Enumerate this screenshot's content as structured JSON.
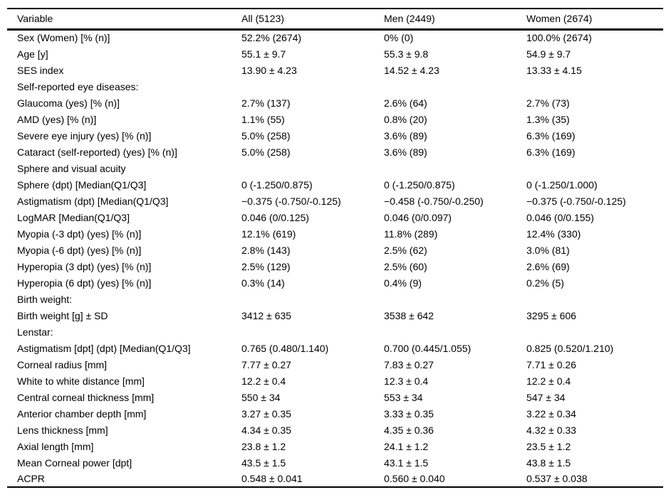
{
  "colors": {
    "background": "#ffffff",
    "text": "#000000",
    "rule": "#000000"
  },
  "table": {
    "columns": [
      "Variable",
      "All (5123)",
      "Men (2449)",
      "Women (2674)"
    ],
    "rows": [
      {
        "variable": "Sex (Women) [% (n)]",
        "all": "52.2% (2674)",
        "men": "0% (0)",
        "women": "100.0% (2674)",
        "section": false
      },
      {
        "variable": "Age [y]",
        "all": "55.1 ± 9.7",
        "men": "55.3 ± 9.8",
        "women": "54.9 ± 9.7",
        "section": false
      },
      {
        "variable": "SES index",
        "all": "13.90 ± 4.23",
        "men": "14.52 ± 4.23",
        "women": "13.33 ± 4.15",
        "section": false
      },
      {
        "variable": "Self-reported eye diseases:",
        "all": "",
        "men": "",
        "women": "",
        "section": true
      },
      {
        "variable": "Glaucoma (yes) [% (n)]",
        "all": "2.7% (137)",
        "men": "2.6% (64)",
        "women": "2.7% (73)",
        "section": false
      },
      {
        "variable": "AMD (yes) [% (n)]",
        "all": "1.1% (55)",
        "men": "0.8% (20)",
        "women": "1.3% (35)",
        "section": false
      },
      {
        "variable": "Severe eye injury (yes) [% (n)]",
        "all": "5.0% (258)",
        "men": "3.6% (89)",
        "women": "6.3% (169)",
        "section": false
      },
      {
        "variable": "Cataract (self-reported) (yes) [% (n)]",
        "all": "5.0% (258)",
        "men": "3.6% (89)",
        "women": "6.3% (169)",
        "section": false
      },
      {
        "variable": "Sphere and visual acuity",
        "all": "",
        "men": "",
        "women": "",
        "section": true
      },
      {
        "variable": "Sphere (dpt) [Median(Q1/Q3]",
        "all": "0 (-1.250/0.875)",
        "men": "0 (-1.250/0.875)",
        "women": "0 (-1.250/1.000)",
        "section": false
      },
      {
        "variable": "Astigmatism (dpt) [Median(Q1/Q3]",
        "all": "−0.375 (-0.750/-0.125)",
        "men": "−0.458 (-0.750/-0.250)",
        "women": "−0.375 (-0.750/-0.125)",
        "section": false
      },
      {
        "variable": "LogMAR [Median(Q1/Q3]",
        "all": "0.046 (0/0.125)",
        "men": "0.046 (0/0.097)",
        "women": "0.046 (0/0.155)",
        "section": false
      },
      {
        "variable": "Myopia (-3 dpt) (yes) [% (n)]",
        "all": "12.1% (619)",
        "men": "11.8% (289)",
        "women": "12.4% (330)",
        "section": false
      },
      {
        "variable": "Myopia (-6 dpt) (yes) [% (n)]",
        "all": "2.8% (143)",
        "men": "2.5% (62)",
        "women": "3.0% (81)",
        "section": false
      },
      {
        "variable": "Hyperopia (3 dpt) (yes) [% (n)]",
        "all": "2.5% (129)",
        "men": "2.5% (60)",
        "women": "2.6% (69)",
        "section": false
      },
      {
        "variable": "Hyperopia (6 dpt) (yes) [% (n)]",
        "all": "0.3% (14)",
        "men": "0.4% (9)",
        "women": "0.2% (5)",
        "section": false
      },
      {
        "variable": "Birth weight:",
        "all": "",
        "men": "",
        "women": "",
        "section": true
      },
      {
        "variable": "Birth weight [g] ± SD",
        "all": "3412 ± 635",
        "men": "3538 ± 642",
        "women": "3295 ± 606",
        "section": false
      },
      {
        "variable": "Lenstar:",
        "all": "",
        "men": "",
        "women": "",
        "section": true
      },
      {
        "variable": "Astigmatism [dpt] (dpt) [Median(Q1/Q3]",
        "all": "0.765 (0.480/1.140)",
        "men": "0.700 (0.445/1.055)",
        "women": "0.825 (0.520/1.210)",
        "section": false
      },
      {
        "variable": "Corneal radius [mm]",
        "all": "7.77 ± 0.27",
        "men": "7.83 ± 0.27",
        "women": "7.71 ± 0.26",
        "section": false
      },
      {
        "variable": "White to white distance [mm]",
        "all": "12.2 ± 0.4",
        "men": "12.3 ± 0.4",
        "women": "12.2 ± 0.4",
        "section": false
      },
      {
        "variable": "Central corneal thickness [mm]",
        "all": "550 ± 34",
        "men": "553 ± 34",
        "women": "547 ± 34",
        "section": false
      },
      {
        "variable": "Anterior chamber depth [mm]",
        "all": "3.27 ± 0.35",
        "men": "3.33 ± 0.35",
        "women": "3.22 ± 0.34",
        "section": false
      },
      {
        "variable": "Lens thickness [mm]",
        "all": "4.34 ± 0.35",
        "men": "4.35 ± 0.36",
        "women": "4.32 ± 0.33",
        "section": false
      },
      {
        "variable": "Axial length [mm]",
        "all": "23.8 ± 1.2",
        "men": "24.1 ± 1.2",
        "women": "23.5 ± 1.2",
        "section": false
      },
      {
        "variable": "Mean Corneal power [dpt]",
        "all": "43.5 ± 1.5",
        "men": "43.1 ± 1.5",
        "women": "43.8 ± 1.5",
        "section": false
      },
      {
        "variable": "ACPR",
        "all": "0.548 ± 0.041",
        "men": "0.560 ± 0.040",
        "women": "0.537 ± 0.038",
        "section": false
      }
    ]
  }
}
